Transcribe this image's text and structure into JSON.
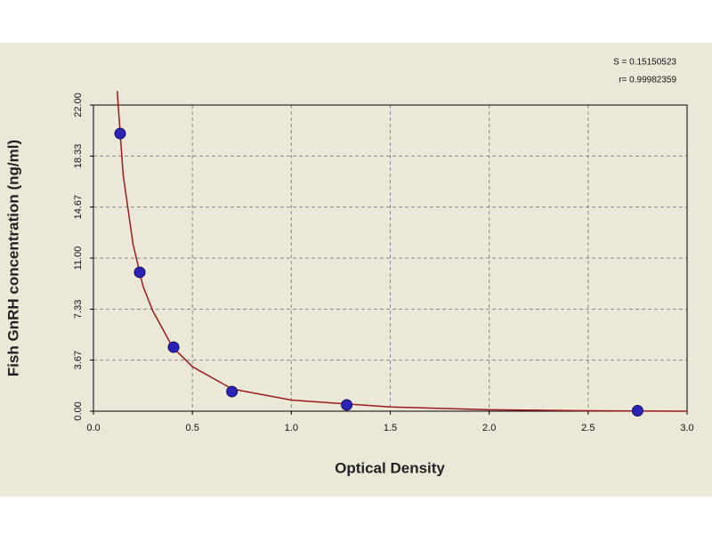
{
  "chart_data": {
    "type": "scatter",
    "xlabel": "Optical Density",
    "ylabel": "Fish GnRH concentration (ng/ml)",
    "annotations": [
      "S = 0.15150523",
      "r= 0.99982359"
    ],
    "x": [
      0.135,
      0.234,
      0.405,
      0.7,
      1.28,
      2.75
    ],
    "values": [
      19.95,
      9.98,
      4.6,
      1.41,
      0.45,
      0.03
    ],
    "color": "#2b22b8",
    "fit": {
      "color": "#9b1b1b",
      "x": [
        0.12,
        0.15,
        0.2,
        0.25,
        0.3,
        0.4,
        0.5,
        0.7,
        1.0,
        1.5,
        2.0,
        2.5,
        3.0
      ],
      "y": [
        23,
        17,
        12,
        9,
        7.2,
        4.6,
        3.2,
        1.6,
        0.8,
        0.3,
        0.1,
        0.03,
        0
      ]
    },
    "xlim": [
      0,
      3
    ],
    "ylim": [
      0,
      22
    ],
    "xticks": [
      {
        "value": 0,
        "label": "0.0"
      },
      0.5,
      {
        "value": 1,
        "label": "1.0"
      },
      1.5,
      {
        "value": 2,
        "label": "2.0"
      },
      2.5,
      {
        "value": 3,
        "label": "3.0"
      }
    ],
    "yticks": [
      {
        "value": 0,
        "label": "0.00"
      },
      3.67,
      7.33,
      {
        "value": 11,
        "label": "11.00"
      },
      14.67,
      18.33,
      {
        "value": 22,
        "label": "22.00"
      }
    ],
    "grid": true
  }
}
